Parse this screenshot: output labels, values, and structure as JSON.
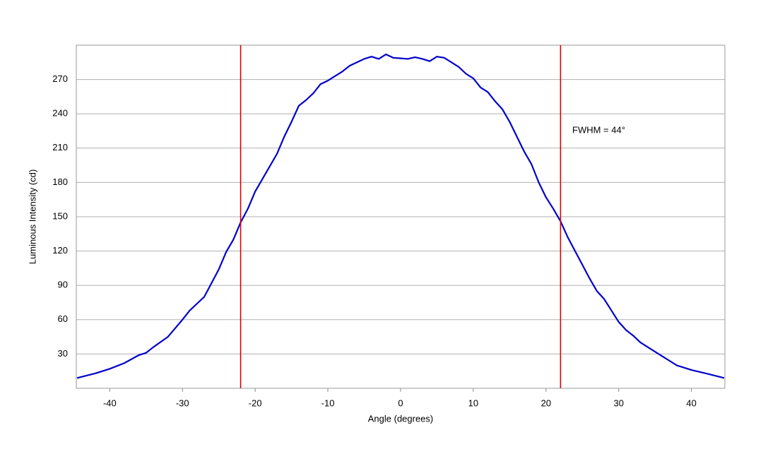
{
  "chart_data": {
    "type": "line",
    "xlabel": "Angle (degrees)",
    "ylabel": "Luminous Intensity (cd)",
    "annotation": "FWHM = 44°",
    "x": [
      -44.5,
      -42,
      -40,
      -38,
      -36,
      -35,
      -34,
      -32,
      -30,
      -29,
      -28,
      -27,
      -26,
      -25,
      -24,
      -23,
      -22,
      -21,
      -20,
      -19,
      -18,
      -17,
      -16,
      -15,
      -14,
      -13,
      -12,
      -11,
      -10,
      -9,
      -8,
      -7,
      -6,
      -5,
      -4,
      -3,
      -2,
      -1,
      0,
      1,
      2,
      3,
      4,
      5,
      6,
      7,
      8,
      9,
      10,
      11,
      12,
      13,
      14,
      15,
      16,
      17,
      18,
      19,
      20,
      21,
      22,
      23,
      24,
      25,
      26,
      27,
      28,
      29,
      30,
      31,
      32,
      33,
      34,
      35,
      36,
      37,
      38,
      40,
      42,
      44.5
    ],
    "series": [
      {
        "color": "#0000cc",
        "values": [
          9,
          13,
          17,
          22,
          29,
          31,
          36,
          45,
          60,
          68,
          74,
          80,
          92,
          104,
          119,
          130,
          145,
          157,
          172,
          183,
          194,
          205,
          220,
          233,
          247,
          252,
          258,
          266,
          269,
          273,
          277,
          282,
          285,
          288,
          290,
          288,
          292,
          289,
          288.5,
          288,
          289.5,
          288,
          286,
          290,
          289,
          285,
          281,
          275,
          271,
          263,
          259,
          251,
          244,
          233,
          220,
          207,
          196,
          180,
          167,
          157,
          146,
          132,
          120,
          108,
          96,
          85,
          78,
          68,
          58,
          51,
          46,
          40,
          36,
          32,
          28,
          24,
          20,
          16,
          13,
          9
        ]
      }
    ],
    "vlines": [
      -22,
      22
    ],
    "vline_color": "#dd0000",
    "xlim": [
      -44.6,
      44.6
    ],
    "ylim": [
      0,
      300
    ],
    "xticks": [
      -40,
      -30,
      -20,
      -10,
      0,
      10,
      20,
      30,
      40
    ],
    "yticks": [
      30,
      60,
      90,
      120,
      150,
      180,
      210,
      240,
      270
    ],
    "grid": true
  }
}
